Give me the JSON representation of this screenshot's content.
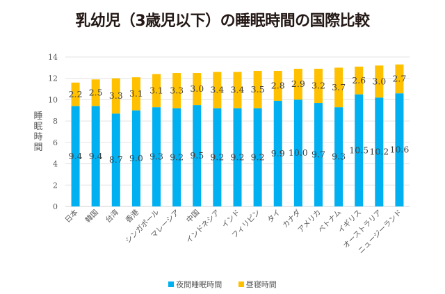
{
  "chart_data": {
    "type": "bar",
    "stacked": true,
    "title": "乳幼児（3歳児以下）の睡眠時間の国際比較",
    "xlabel": "",
    "ylabel": "睡眠時間",
    "ylim": [
      0,
      14
    ],
    "yticks": [
      0,
      2,
      4,
      6,
      8,
      10,
      12,
      14
    ],
    "grid": true,
    "legend_position": "bottom",
    "categories": [
      "日本",
      "韓国",
      "台湾",
      "香港",
      "シンガポール",
      "マレーシア",
      "中国",
      "インドネシア",
      "インド",
      "フィリピン",
      "タイ",
      "カナダ",
      "アメリカ",
      "ベトナム",
      "イギリス",
      "オーストラリア",
      "ニュージーランド"
    ],
    "series": [
      {
        "name": "夜間睡眠時間",
        "color": "#00B0F0",
        "values": [
          9.4,
          9.4,
          8.7,
          9.0,
          9.3,
          9.2,
          9.5,
          9.2,
          9.2,
          9.2,
          9.9,
          10.0,
          9.7,
          9.3,
          10.5,
          10.2,
          10.6
        ]
      },
      {
        "name": "昼寝時間",
        "color": "#FFC000",
        "values": [
          2.2,
          2.5,
          3.3,
          3.1,
          3.1,
          3.3,
          3.0,
          3.4,
          3.4,
          3.5,
          2.8,
          2.9,
          3.2,
          3.7,
          2.6,
          3.0,
          2.7
        ]
      }
    ]
  }
}
